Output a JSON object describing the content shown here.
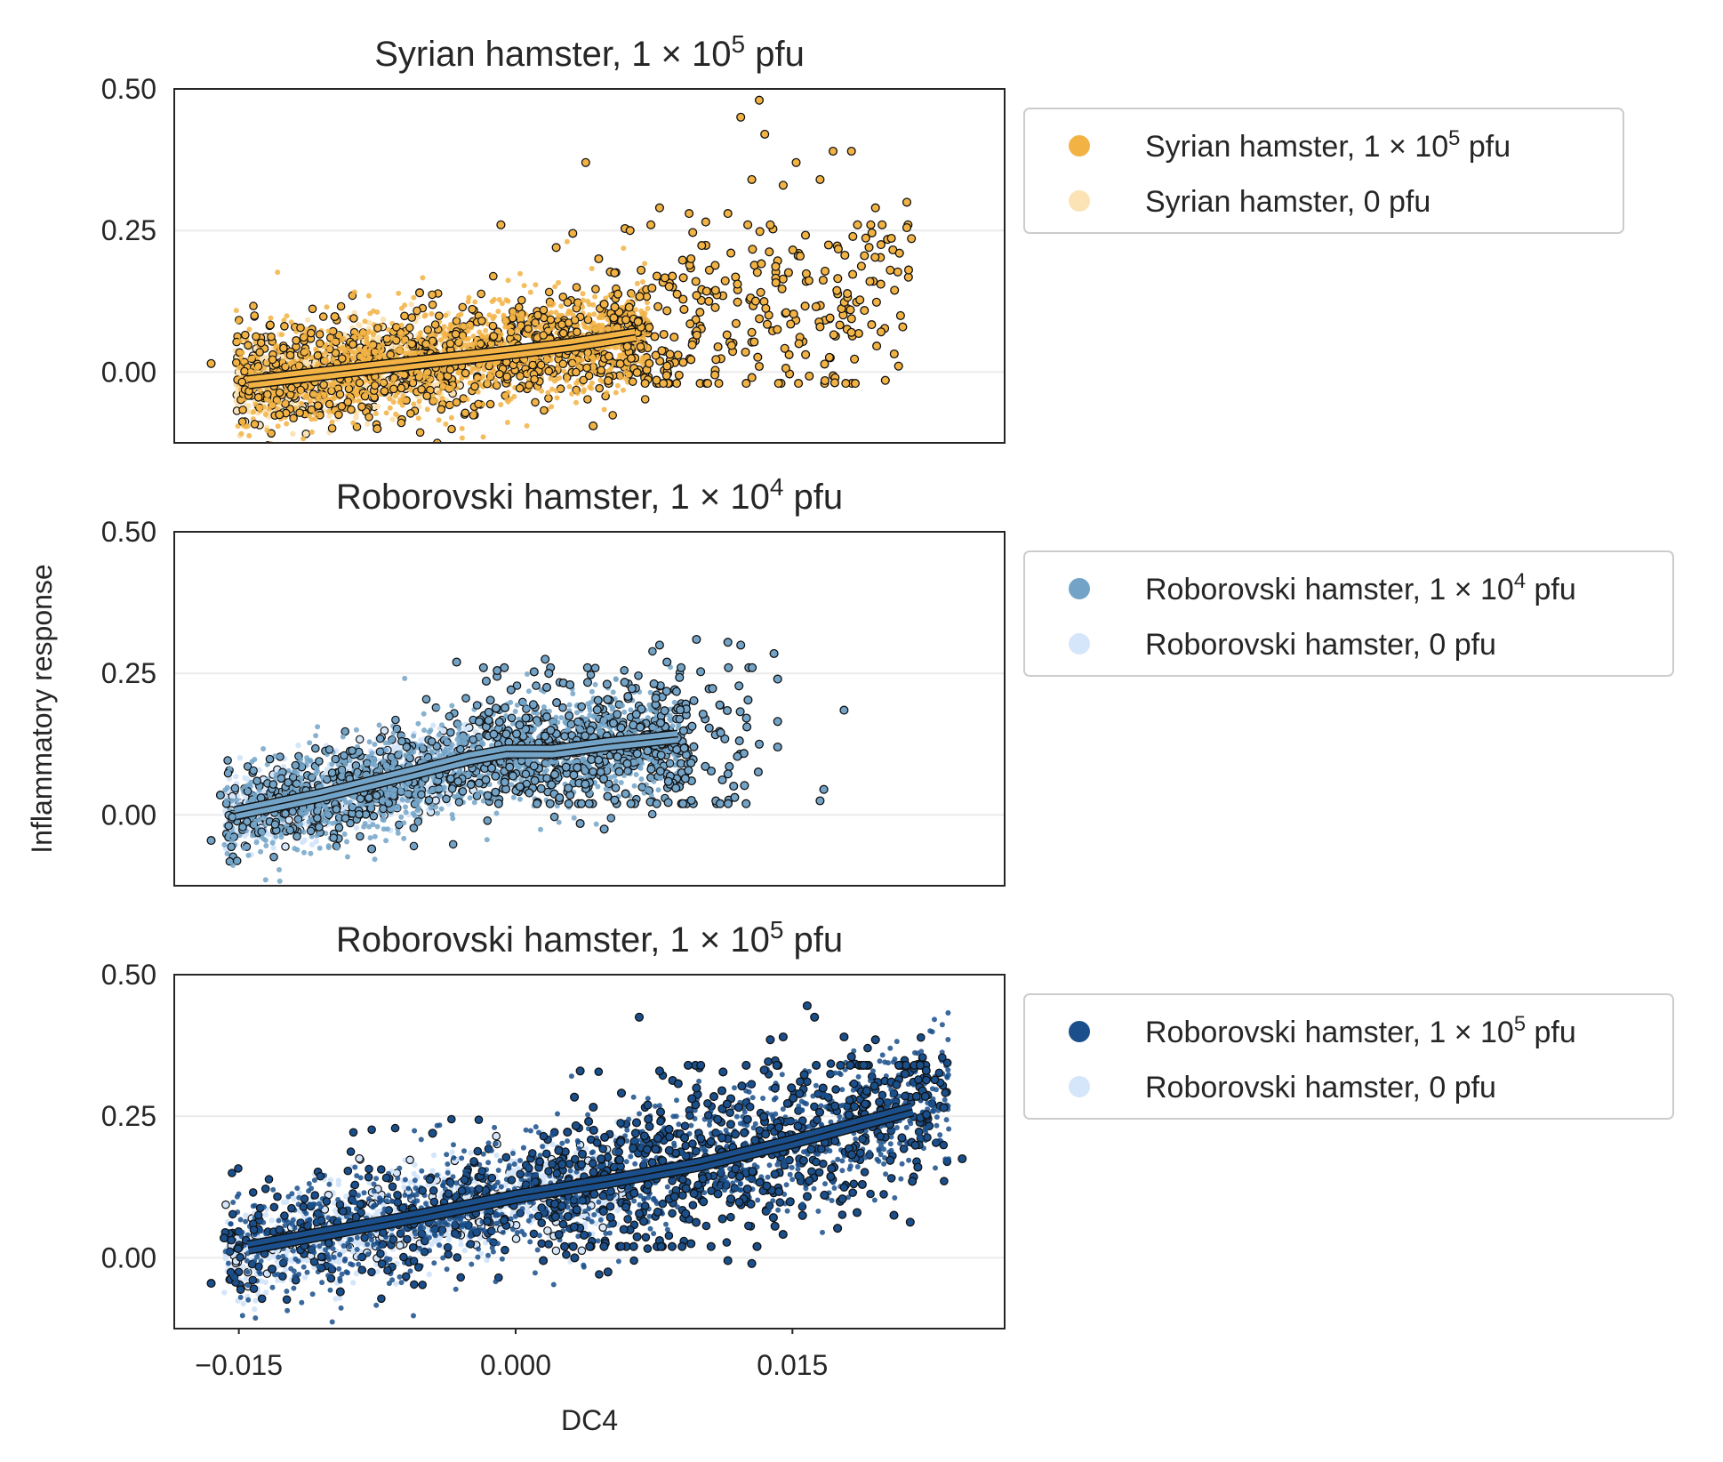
{
  "figure": {
    "ylabel": "Inflammatory response",
    "xlabel": "DC4"
  },
  "chart_data": [
    {
      "type": "scatter",
      "title": {
        "pre": "Syrian hamster, 1 × 10",
        "sup": "5",
        "post": " pfu"
      },
      "xlim": [
        -0.0185,
        0.0265
      ],
      "ylim": [
        -0.125,
        0.5
      ],
      "yticks": [
        0.0,
        0.25,
        0.5
      ],
      "ytick_labels": [
        "0.00",
        "0.25",
        "0.50"
      ],
      "grid": "horizontal",
      "legend_position": "outside-right",
      "series": [
        {
          "name": {
            "pre": "Syrian hamster, 1 × 10",
            "sup": "5",
            "post": " pfu"
          },
          "color": "#F2B344",
          "role": "infected",
          "samples": [
            [
              -0.0165,
              0.015
            ],
            [
              -0.0133,
              0.083
            ],
            [
              -0.0098,
              0.098
            ],
            [
              -0.0052,
              0.14
            ],
            [
              -0.0008,
              0.26
            ],
            [
              0.0038,
              0.37
            ],
            [
              0.0031,
              0.245
            ],
            [
              0.0062,
              0.25
            ],
            [
              0.0078,
              0.29
            ],
            [
              0.0094,
              0.28
            ],
            [
              0.0103,
              0.265
            ],
            [
              0.0115,
              0.28
            ],
            [
              0.0122,
              0.45
            ],
            [
              0.0132,
              0.48
            ],
            [
              0.0135,
              0.42
            ],
            [
              0.0128,
              0.34
            ],
            [
              0.0138,
              0.26
            ],
            [
              0.0152,
              0.37
            ],
            [
              0.0165,
              0.34
            ],
            [
              0.0172,
              0.39
            ],
            [
              0.0182,
              0.39
            ],
            [
              0.0195,
              0.29
            ],
            [
              0.0212,
              0.3
            ],
            [
              0.0212,
              0.255
            ],
            [
              0.0208,
              0.21
            ],
            [
              0.0203,
              0.18
            ],
            [
              0.0128,
              0.07
            ],
            [
              0.0095,
              0.022
            ],
            [
              0.0132,
              0.01
            ],
            [
              0.0108,
              -0.005
            ],
            [
              0.0088,
              0.03
            ],
            [
              0.0182,
              0.07
            ],
            [
              0.0165,
              0.08
            ],
            [
              0.0192,
              0.16
            ],
            [
              0.0198,
              0.225
            ],
            [
              0.0145,
              0.33
            ],
            [
              0.0105,
              0.18
            ],
            [
              0.0068,
              0.18
            ],
            [
              0.0045,
              0.2
            ],
            [
              0.0022,
              0.22
            ],
            [
              -0.0075,
              -0.1
            ],
            [
              0.0042,
              -0.095
            ],
            [
              -0.0128,
              -0.075
            ],
            [
              0.0048,
              0.12
            ],
            [
              0.0095,
              0.2
            ]
          ]
        },
        {
          "name": {
            "pre": "Syrian hamster, 0 pfu",
            "sup": "",
            "post": ""
          },
          "color": "#FBE3B6",
          "role": "control",
          "samples": []
        }
      ],
      "trend": {
        "color": "#F2B344",
        "x": [
          -0.0145,
          -0.01,
          -0.005,
          0.0,
          0.003,
          0.0065
        ],
        "y": [
          -0.018,
          -0.001,
          0.018,
          0.036,
          0.048,
          0.066
        ]
      },
      "cloud": {
        "x_range": [
          -0.0152,
          0.0072
        ],
        "spread": 0.048,
        "extra_x_range": [
          0.005,
          0.0215
        ],
        "extra_y": [
          -0.02,
          0.26
        ]
      }
    },
    {
      "type": "scatter",
      "title": {
        "pre": "Roborovski hamster, 1 × 10",
        "sup": "4",
        "post": " pfu"
      },
      "xlim": [
        -0.0185,
        0.0265
      ],
      "ylim": [
        -0.125,
        0.5
      ],
      "yticks": [
        0.0,
        0.25,
        0.5
      ],
      "ytick_labels": [
        "0.00",
        "0.25",
        "0.50"
      ],
      "grid": "horizontal",
      "legend_position": "outside-right",
      "series": [
        {
          "name": {
            "pre": "Roborovski hamster, 1 × 10",
            "sup": "4",
            "post": " pfu"
          },
          "color": "#73A4C8",
          "role": "infected",
          "samples": [
            [
              -0.0165,
              -0.045
            ],
            [
              -0.016,
              0.035
            ],
            [
              -0.0078,
              -0.06
            ],
            [
              -0.0032,
              0.27
            ],
            [
              -0.001,
              0.255
            ],
            [
              0.0016,
              0.275
            ],
            [
              0.0018,
              0.25
            ],
            [
              0.0078,
              0.3
            ],
            [
              0.0098,
              0.31
            ],
            [
              0.0115,
              0.305
            ],
            [
              0.0122,
              0.3
            ],
            [
              0.014,
              0.285
            ],
            [
              0.0142,
              0.24
            ],
            [
              0.0142,
              0.165
            ],
            [
              0.0142,
              0.12
            ],
            [
              0.0132,
              0.125
            ],
            [
              0.0178,
              0.185
            ],
            [
              0.0167,
              0.045
            ],
            [
              0.0165,
              0.025
            ],
            [
              0.0048,
              -0.025
            ],
            [
              0.0035,
              -0.015
            ],
            [
              -0.0138,
              0.03
            ],
            [
              0.0082,
              0.27
            ]
          ]
        },
        {
          "name": {
            "pre": "Roborovski hamster, 0 pfu",
            "sup": "",
            "post": ""
          },
          "color": "#D6E6FA",
          "role": "control",
          "samples": []
        }
      ],
      "trend": {
        "color": "#73A4C8",
        "x": [
          -0.0152,
          -0.0105,
          -0.0055,
          -0.0025,
          -0.0005,
          0.002,
          0.005,
          0.0088
        ],
        "y": [
          0.003,
          0.035,
          0.075,
          0.1,
          0.112,
          0.112,
          0.125,
          0.138
        ]
      },
      "cloud": {
        "x_range": [
          -0.0158,
          0.009
        ],
        "spread": 0.045,
        "extra_x_range": [
          -0.002,
          0.0132
        ],
        "extra_y": [
          0.02,
          0.26
        ]
      }
    },
    {
      "type": "scatter",
      "title": {
        "pre": "Roborovski hamster, 1 × 10",
        "sup": "5",
        "post": " pfu"
      },
      "xlim": [
        -0.0185,
        0.0265
      ],
      "ylim": [
        -0.125,
        0.5
      ],
      "yticks": [
        0.0,
        0.25,
        0.5
      ],
      "ytick_labels": [
        "0.00",
        "0.25",
        "0.50"
      ],
      "xticks": [
        -0.015,
        0.0,
        0.015
      ],
      "xtick_labels": [
        "−0.015",
        "0.000",
        "0.015"
      ],
      "grid": "horizontal",
      "legend_position": "outside-right",
      "series": [
        {
          "name": {
            "pre": "Roborovski hamster, 1 × 10",
            "sup": "5",
            "post": " pfu"
          },
          "color": "#1A4F8B",
          "role": "infected",
          "samples": [
            [
              -0.0165,
              -0.045
            ],
            [
              -0.0158,
              0.035
            ],
            [
              -0.0095,
              -0.06
            ],
            [
              -0.0045,
              0.22
            ],
            [
              0.0067,
              0.425
            ],
            [
              0.0065,
              0.22
            ],
            [
              0.0078,
              0.33
            ],
            [
              0.0098,
              0.3
            ],
            [
              0.0138,
              0.385
            ],
            [
              0.0145,
              0.39
            ],
            [
              0.0158,
              0.445
            ],
            [
              0.0162,
              0.425
            ],
            [
              0.0178,
              0.39
            ],
            [
              0.0182,
              0.355
            ],
            [
              0.0195,
              0.385
            ],
            [
              0.0222,
              0.285
            ],
            [
              0.0232,
              0.265
            ],
            [
              0.0242,
              0.175
            ],
            [
              0.0218,
              0.16
            ],
            [
              0.0215,
              0.135
            ],
            [
              0.0205,
              0.075
            ],
            [
              0.0185,
              0.08
            ],
            [
              0.0128,
              -0.01
            ],
            [
              0.0115,
              -0.005
            ],
            [
              0.0095,
              0.025
            ],
            [
              0.0032,
              0.0
            ],
            [
              0.005,
              -0.025
            ],
            [
              -0.0132,
              -0.02
            ],
            [
              0.0015,
              -0.005
            ],
            [
              0.0035,
              0.33
            ]
          ]
        },
        {
          "name": {
            "pre": "Roborovski hamster, 0 pfu",
            "sup": "",
            "post": ""
          },
          "color": "#D6E6FA",
          "role": "control",
          "samples": []
        }
      ],
      "trend": {
        "color": "#1A4F8B",
        "x": [
          -0.0145,
          -0.01,
          -0.005,
          0.0,
          0.005,
          0.01,
          0.015,
          0.0215
        ],
        "y": [
          0.018,
          0.045,
          0.075,
          0.108,
          0.135,
          0.165,
          0.205,
          0.262
        ]
      },
      "cloud": {
        "x_range": [
          -0.0158,
          0.0235
        ],
        "spread": 0.06,
        "extra_x_range": [
          0.002,
          0.0225
        ],
        "extra_y": [
          0.02,
          0.34
        ]
      }
    }
  ]
}
